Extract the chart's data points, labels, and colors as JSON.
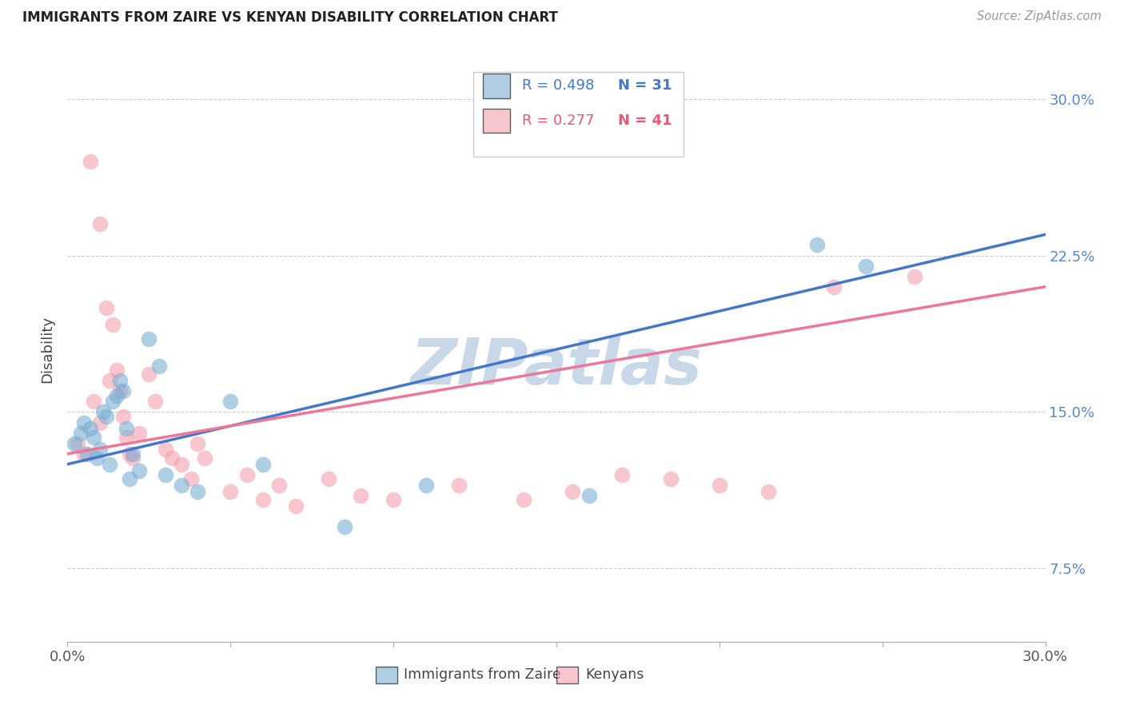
{
  "title": "IMMIGRANTS FROM ZAIRE VS KENYAN DISABILITY CORRELATION CHART",
  "source": "Source: ZipAtlas.com",
  "ylabel": "Disability",
  "xlim": [
    0.0,
    0.3
  ],
  "ylim": [
    0.04,
    0.32
  ],
  "yticks": [
    0.075,
    0.15,
    0.225,
    0.3
  ],
  "ytick_labels": [
    "7.5%",
    "15.0%",
    "22.5%",
    "30.0%"
  ],
  "xticks": [
    0.0,
    0.05,
    0.1,
    0.15,
    0.2,
    0.25,
    0.3
  ],
  "xtick_labels": [
    "0.0%",
    "",
    "",
    "",
    "",
    "",
    "30.0%"
  ],
  "legend_r1": "R = 0.498",
  "legend_n1": "N = 31",
  "legend_r2": "R = 0.277",
  "legend_n2": "N = 41",
  "blue_color": "#7BAFD4",
  "pink_color": "#F4A0B0",
  "line_blue": "#4477CC",
  "line_pink": "#EE7799",
  "watermark": "ZIPatlas",
  "watermark_color": "#C8D8E8",
  "blue_scatter_x": [
    0.002,
    0.004,
    0.005,
    0.006,
    0.007,
    0.008,
    0.009,
    0.01,
    0.011,
    0.012,
    0.013,
    0.014,
    0.015,
    0.016,
    0.017,
    0.018,
    0.019,
    0.02,
    0.022,
    0.025,
    0.028,
    0.03,
    0.035,
    0.04,
    0.05,
    0.06,
    0.085,
    0.11,
    0.16,
    0.23,
    0.245
  ],
  "blue_scatter_y": [
    0.135,
    0.14,
    0.145,
    0.13,
    0.142,
    0.138,
    0.128,
    0.132,
    0.15,
    0.148,
    0.125,
    0.155,
    0.158,
    0.165,
    0.16,
    0.142,
    0.118,
    0.13,
    0.122,
    0.185,
    0.172,
    0.12,
    0.115,
    0.112,
    0.155,
    0.125,
    0.095,
    0.115,
    0.11,
    0.23,
    0.22
  ],
  "pink_scatter_x": [
    0.003,
    0.005,
    0.007,
    0.008,
    0.01,
    0.01,
    0.012,
    0.013,
    0.014,
    0.015,
    0.016,
    0.017,
    0.018,
    0.019,
    0.02,
    0.022,
    0.025,
    0.027,
    0.03,
    0.032,
    0.035,
    0.038,
    0.04,
    0.042,
    0.05,
    0.055,
    0.06,
    0.065,
    0.07,
    0.08,
    0.09,
    0.1,
    0.12,
    0.14,
    0.155,
    0.17,
    0.185,
    0.2,
    0.215,
    0.235,
    0.26
  ],
  "pink_scatter_y": [
    0.135,
    0.13,
    0.27,
    0.155,
    0.145,
    0.24,
    0.2,
    0.165,
    0.192,
    0.17,
    0.16,
    0.148,
    0.138,
    0.13,
    0.128,
    0.14,
    0.168,
    0.155,
    0.132,
    0.128,
    0.125,
    0.118,
    0.135,
    0.128,
    0.112,
    0.12,
    0.108,
    0.115,
    0.105,
    0.118,
    0.11,
    0.108,
    0.115,
    0.108,
    0.112,
    0.12,
    0.118,
    0.115,
    0.112,
    0.21,
    0.215
  ]
}
